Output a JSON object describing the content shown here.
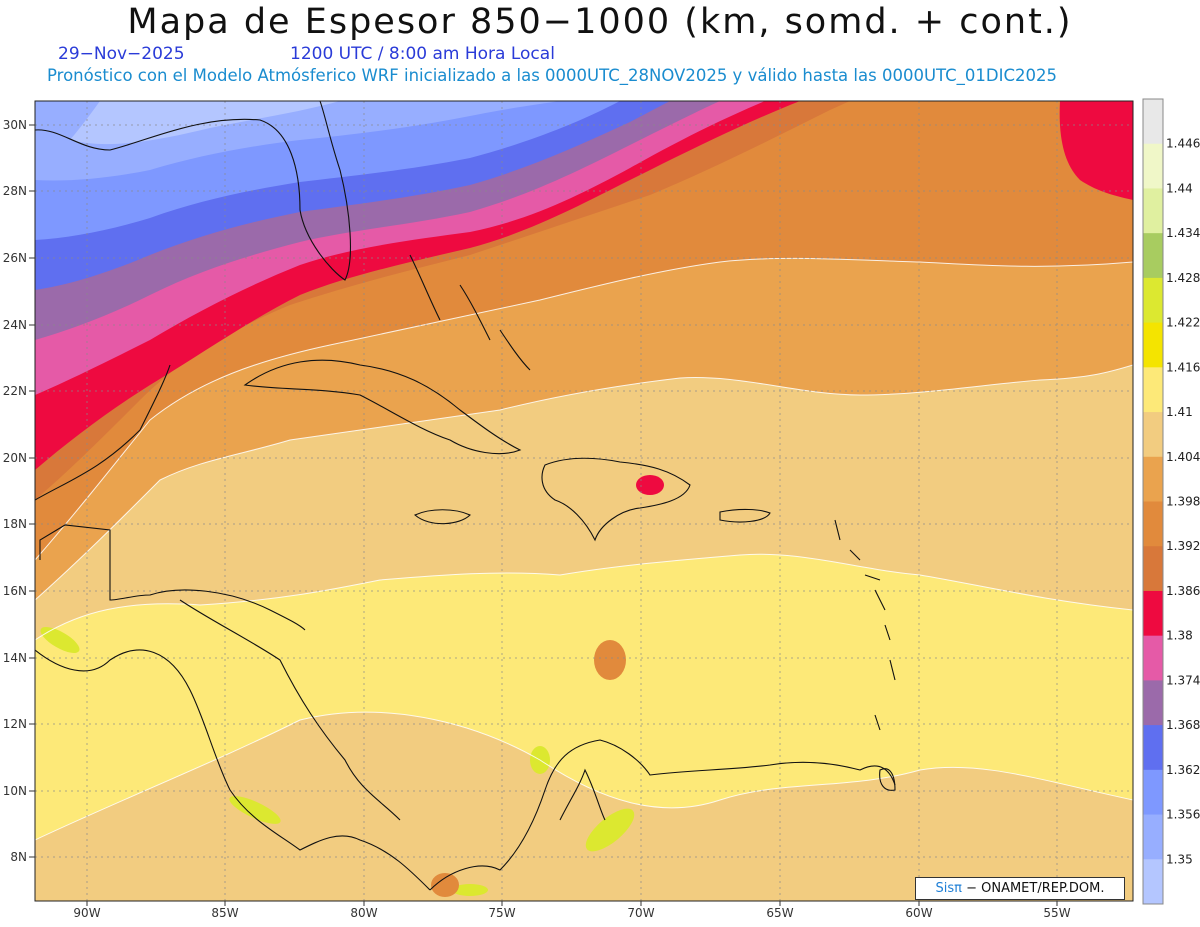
{
  "title": "Mapa de Espesor 850−1000 (km, somd. + cont.)",
  "date": "29−Nov−2025",
  "time": "1200 UTC / 8:00 am Hora Local",
  "description": "Pronóstico con el Modelo Atmósferico WRF inicializado a las 0000UTC_28NOV2025 y válido hasta las  0000UTC_01DIC2025",
  "credit": {
    "logo": "Sisπ",
    "org": "− ONAMET/REP.DOM."
  },
  "axes": {
    "lat_labels": [
      "30N",
      "28N",
      "26N",
      "24N",
      "22N",
      "20N",
      "18N",
      "16N",
      "14N",
      "12N",
      "10N",
      "8N"
    ],
    "lon_labels": [
      "90W",
      "85W",
      "80W",
      "75W",
      "70W",
      "65W",
      "60W",
      "55W"
    ]
  },
  "colorbar": {
    "levels": [
      "1.446",
      "1.44",
      "1.434",
      "1.428",
      "1.422",
      "1.416",
      "1.41",
      "1.404",
      "1.398",
      "1.392",
      "1.386",
      "1.38",
      "1.374",
      "1.368",
      "1.362",
      "1.356",
      "1.35"
    ],
    "colors": [
      "#e8e8e8",
      "#f0f7c8",
      "#e0f0a0",
      "#a8cc60",
      "#dce830",
      "#f4e400",
      "#fde978",
      "#f2cc80",
      "#eaa34e",
      "#e18a3c",
      "#d8783a",
      "#ee0a40",
      "#e55aa7",
      "#9b6aaa",
      "#5f6ff0",
      "#7e98ff",
      "#97aeff",
      "#b4c6ff"
    ]
  }
}
